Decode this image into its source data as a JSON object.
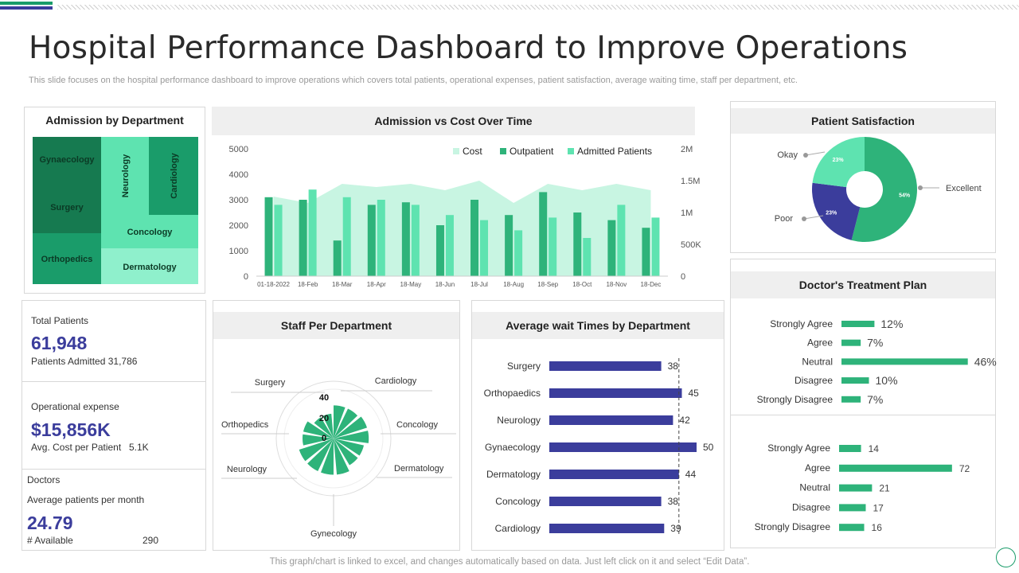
{
  "title": "Hospital Performance Dashboard to Improve Operations",
  "subtitle": "This slide focuses on the hospital performance dashboard to improve operations which covers total patients, operational expenses, patient satisfaction, average waiting time, staff per department, etc.",
  "footer": "This graph/chart is linked to excel,  and changes automatically based on data. Just left click on it and select “Edit Data”.",
  "colors": {
    "green_dark": "#1a9c6a",
    "green_mid": "#2eb37a",
    "green_light": "#5ee3b0",
    "green_pale": "#c8f5e2",
    "blue": "#3b3d9c",
    "treemap_dark": "#167a50"
  },
  "treemap": {
    "title": "Admission  by Department",
    "tiles": [
      "Gynaecology",
      "Surgery",
      "Neurology",
      "Cardiology",
      "Concology",
      "Orthopedics",
      "Dermatology"
    ]
  },
  "kpis": {
    "total_label": "Total Patients",
    "total_value": "61,948",
    "total_sub": "Patients Admitted 31,786",
    "opex_label": "Operational expense",
    "opex_value": "$15,856K",
    "opex_sub": "Avg. Cost per Patient",
    "opex_sub_value": "5.1K",
    "doctors_label": "Doctors",
    "doctors_sub": "Average patients per month",
    "doctors_value": "24.79",
    "available_label": "# Available",
    "available_value": "290"
  },
  "admission_chart": {
    "title": "Admission  vs Cost Over Time"
  },
  "staff_chart": {
    "title": "Staff Per Department"
  },
  "wait_chart": {
    "title": "Average wait Times by Department"
  },
  "satisfaction": {
    "title": "Patient Satisfaction"
  },
  "treatment": {
    "title": "Doctor's Treatment Plan"
  },
  "chart_data": [
    {
      "type": "bar",
      "title": "Admission  vs Cost Over Time",
      "categories": [
        "01-18-2022",
        "18-Feb",
        "18-Mar",
        "18-Apr",
        "18-May",
        "18-Jun",
        "18-Jul",
        "18-Aug",
        "18-Sep",
        "18-Oct",
        "18-Nov",
        "18-Dec"
      ],
      "series": [
        {
          "name": "Cost",
          "type": "area",
          "axis": "right",
          "values": [
            1250000,
            1150000,
            1450000,
            1400000,
            1450000,
            1350000,
            1500000,
            1150000,
            1450000,
            1350000,
            1450000,
            1350000
          ]
        },
        {
          "name": "Outpatient",
          "type": "bar",
          "axis": "left",
          "values": [
            3100,
            3000,
            1400,
            2800,
            2900,
            2000,
            3000,
            2400,
            3300,
            2500,
            2200,
            1900
          ]
        },
        {
          "name": "Admitted Patients",
          "type": "bar",
          "axis": "left",
          "values": [
            2800,
            3400,
            3100,
            3000,
            2800,
            2400,
            2200,
            1800,
            2300,
            1500,
            2800,
            2300
          ]
        }
      ],
      "y_ticks": [
        "5000",
        "4000",
        "3000",
        "2000",
        "1000",
        "0"
      ],
      "y2_ticks": [
        "2M",
        "1.5M",
        "1M",
        "500K",
        "0"
      ],
      "ylim": [
        0,
        5000
      ],
      "y2lim": [
        0,
        2000000
      ],
      "legend": "top-right"
    },
    {
      "type": "polar",
      "title": "Staff Per Department",
      "categories": [
        "Surgery",
        "Cardiology",
        "Concology",
        "Dermatology",
        "Gynecology",
        "Neurology",
        "Orthopedics"
      ],
      "values": [
        32,
        34,
        30,
        35,
        35,
        30,
        24
      ],
      "r_ticks": [
        "40",
        "20",
        "0"
      ],
      "rlim": [
        0,
        40
      ]
    },
    {
      "type": "bar",
      "orientation": "horizontal",
      "title": "Average wait Times by Department",
      "categories": [
        "Surgery",
        "Orthopaedics",
        "Neurology",
        "Gynaecology",
        "Dermatology",
        "Concology",
        "Cardiology"
      ],
      "values": [
        38,
        45,
        42,
        50,
        44,
        38,
        39
      ],
      "reference_line": 44
    },
    {
      "type": "pie",
      "title": "Patient Satisfaction",
      "categories": [
        "Excellent",
        "Poor",
        "Okay"
      ],
      "values": [
        54,
        23,
        23
      ],
      "labels": [
        "54%",
        "23%",
        "23%"
      ]
    },
    {
      "type": "bar",
      "orientation": "horizontal",
      "title": "Doctor's Treatment Plan",
      "categories": [
        "Strongly Agree",
        "Agree",
        "Neutral",
        "Disagree",
        "Strongly Disagree"
      ],
      "values": [
        12,
        7,
        46,
        10,
        7
      ],
      "labels": [
        "12%",
        "7%",
        "46%",
        "10%",
        "7%"
      ]
    },
    {
      "type": "bar",
      "orientation": "horizontal",
      "categories": [
        "Strongly Agree",
        "Agree",
        "Neutral",
        "Disagree",
        "Strongly Disagree"
      ],
      "values": [
        14,
        72,
        21,
        17,
        16
      ]
    }
  ]
}
